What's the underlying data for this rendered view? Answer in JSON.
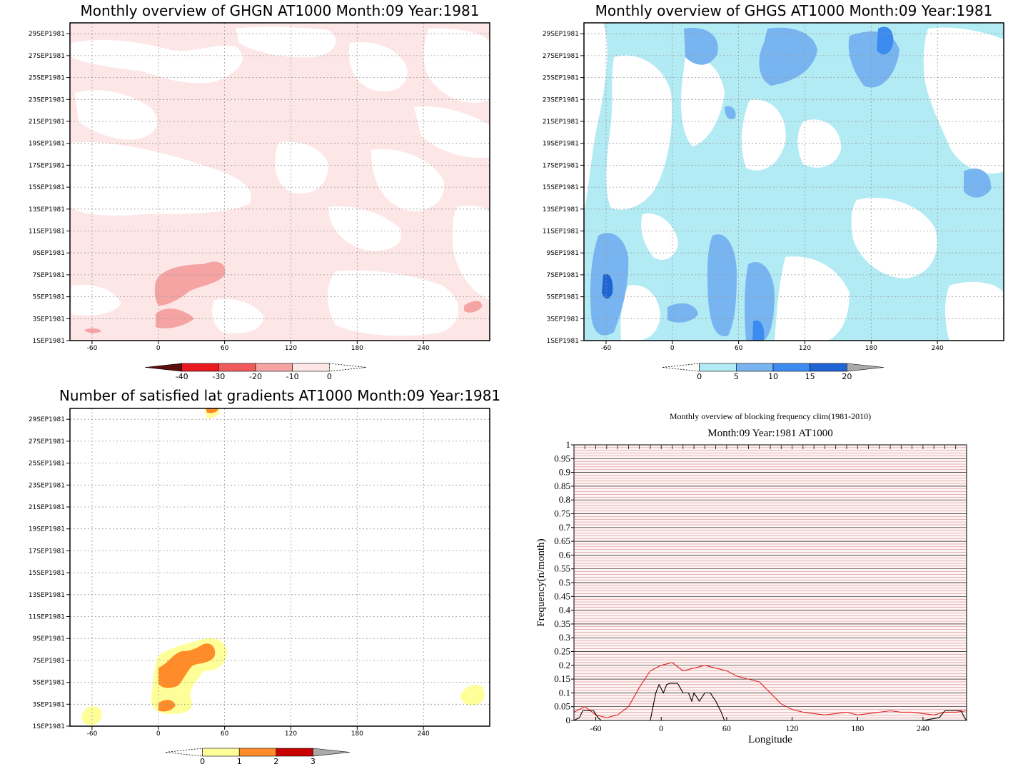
{
  "figure": {
    "panels": [
      {
        "id": "ghgn",
        "title": "Monthly overview of GHGN AT1000 Month:09 Year:1981",
        "y_tick_labels": [
          "1SEP1981",
          "3SEP1981",
          "5SEP1981",
          "7SEP1981",
          "9SEP1981",
          "11SEP1981",
          "13SEP1981",
          "15SEP1981",
          "17SEP1981",
          "19SEP1981",
          "21SEP1981",
          "23SEP1981",
          "25SEP1981",
          "27SEP1981",
          "29SEP1981"
        ],
        "x_tick_labels": [
          "-60",
          "0",
          "60",
          "120",
          "180",
          "240"
        ],
        "colorbar": {
          "labels": [
            "-40",
            "-30",
            "-20",
            "-10",
            "0"
          ],
          "colors": [
            "#5a0f0a",
            "#e8191f",
            "#f05a5a",
            "#f5a3a3",
            "#fde6e6",
            "#ffffff"
          ]
        }
      },
      {
        "id": "ghgs",
        "title": "Monthly overview of GHGS AT1000 Month:09 Year:1981",
        "y_tick_labels": [
          "1SEP1981",
          "3SEP1981",
          "5SEP1981",
          "7SEP1981",
          "9SEP1981",
          "11SEP1981",
          "13SEP1981",
          "15SEP1981",
          "17SEP1981",
          "19SEP1981",
          "21SEP1981",
          "23SEP1981",
          "25SEP1981",
          "27SEP1981",
          "29SEP1981"
        ],
        "x_tick_labels": [
          "-60",
          "0",
          "60",
          "120",
          "180",
          "240"
        ],
        "colorbar": {
          "labels": [
            "0",
            "5",
            "10",
            "15",
            "20"
          ],
          "colors": [
            "#ffffff",
            "#b3ebf5",
            "#78b4f0",
            "#3c8cf0",
            "#1e64d2",
            "#aaaaaa"
          ]
        }
      },
      {
        "id": "lat_gradients",
        "title": "Number of satisfied lat gradients AT1000 Month:09 Year:1981",
        "y_tick_labels": [
          "1SEP1981",
          "3SEP1981",
          "5SEP1981",
          "7SEP1981",
          "9SEP1981",
          "11SEP1981",
          "13SEP1981",
          "15SEP1981",
          "17SEP1981",
          "19SEP1981",
          "21SEP1981",
          "23SEP1981",
          "25SEP1981",
          "27SEP1981",
          "29SEP1981"
        ],
        "x_tick_labels": [
          "-60",
          "0",
          "60",
          "120",
          "180",
          "240"
        ],
        "colorbar": {
          "labels": [
            "0",
            "1",
            "2",
            "3"
          ],
          "colors": [
            "#ffffff",
            "#ffff99",
            "#ff8c28",
            "#c80000",
            "#aaaaaa"
          ]
        }
      }
    ],
    "line_panel": {
      "title": "Monthly overview of blocking frequency clim(1981-2010)",
      "subtitle": "Month:09 Year:1981  AT1000",
      "xlabel": "Longitude",
      "ylabel": "Frequency(n/month)",
      "x_tick_labels": [
        "-60",
        "0",
        "60",
        "120",
        "180",
        "240"
      ],
      "y_tick_labels": [
        "0",
        "0.05",
        "0.1",
        "0.15",
        "0.2",
        "0.25",
        "0.3",
        "0.35",
        "0.4",
        "0.45",
        "0.5",
        "0.55",
        "0.6",
        "0.65",
        "0.7",
        "0.75",
        "0.8",
        "0.85",
        "0.9",
        "0.95",
        "1"
      ]
    }
  },
  "chart_data": [
    {
      "type": "heatmap",
      "title": "Monthly overview of GHGN AT1000 Month:09 Year:1981",
      "x_range": [
        -80,
        300
      ],
      "y_range": [
        "1SEP1981",
        "30SEP1981"
      ],
      "levels": [
        -40,
        -30,
        -20,
        -10,
        0
      ],
      "grid": true
    },
    {
      "type": "heatmap",
      "title": "Monthly overview of GHGS AT1000 Month:09 Year:1981",
      "x_range": [
        -80,
        300
      ],
      "y_range": [
        "1SEP1981",
        "30SEP1981"
      ],
      "levels": [
        0,
        5,
        10,
        15,
        20
      ],
      "grid": true
    },
    {
      "type": "heatmap",
      "title": "Number of satisfied lat gradients AT1000 Month:09 Year:1981",
      "x_range": [
        -80,
        300
      ],
      "y_range": [
        "1SEP1981",
        "30SEP1981"
      ],
      "levels": [
        0,
        1,
        2,
        3
      ],
      "grid": true
    },
    {
      "type": "line",
      "title": "Monthly overview of blocking frequency clim(1981-2010)",
      "subtitle": "Month:09 Year:1981  AT1000",
      "xlabel": "Longitude",
      "ylabel": "Frequency(n/month)",
      "xlim": [
        -80,
        280
      ],
      "ylim": [
        0,
        1
      ],
      "series": [
        {
          "color": "#e02020",
          "x": [
            -80,
            -70,
            -60,
            -50,
            -40,
            -30,
            -20,
            -10,
            0,
            10,
            20,
            30,
            40,
            50,
            60,
            70,
            80,
            90,
            100,
            110,
            120,
            130,
            140,
            150,
            160,
            170,
            180,
            190,
            200,
            210,
            220,
            230,
            240,
            250,
            260,
            270,
            280
          ],
          "y": [
            0.03,
            0.05,
            0.02,
            0.01,
            0.02,
            0.05,
            0.12,
            0.18,
            0.2,
            0.21,
            0.18,
            0.19,
            0.2,
            0.19,
            0.18,
            0.16,
            0.15,
            0.14,
            0.1,
            0.06,
            0.04,
            0.03,
            0.025,
            0.02,
            0.025,
            0.03,
            0.02,
            0.025,
            0.03,
            0.035,
            0.03,
            0.03,
            0.025,
            0.02,
            0.03,
            0.03,
            0.035
          ]
        },
        {
          "color": "#000000",
          "x": [
            -80,
            -75,
            -72,
            -68,
            -62,
            -58,
            -55,
            -50,
            -40,
            -20,
            -10,
            -8,
            -5,
            -2,
            2,
            5,
            8,
            12,
            15,
            20,
            25,
            28,
            30,
            35,
            40,
            45,
            50,
            55,
            58,
            62,
            70,
            100,
            150,
            200,
            240,
            255,
            260,
            270,
            275,
            278,
            280
          ],
          "y": [
            0,
            0.01,
            0.035,
            0.035,
            0.035,
            0.01,
            0,
            0,
            0,
            0,
            0,
            0.04,
            0.1,
            0.13,
            0.1,
            0.13,
            0.135,
            0.135,
            0.135,
            0.1,
            0.1,
            0.07,
            0.1,
            0.07,
            0.1,
            0.1,
            0.07,
            0.03,
            0,
            0,
            0,
            0,
            0,
            0,
            0,
            0.01,
            0.035,
            0.035,
            0.035,
            0.01,
            0
          ]
        }
      ],
      "grid": true
    }
  ]
}
